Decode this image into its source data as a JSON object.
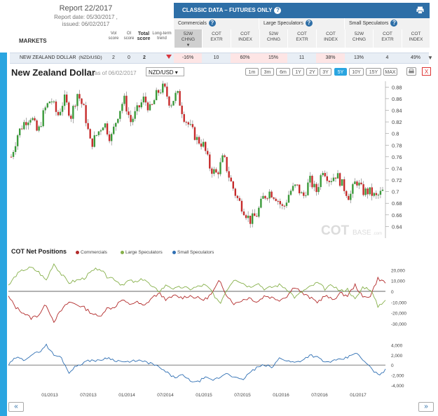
{
  "report": {
    "title": "Report 22/2017",
    "report_date": "Report date: 05/30/2017 ,",
    "issued": "issued: 06/02/2017"
  },
  "table_head": {
    "markets": "MARKETS",
    "vol_score": [
      "Vol",
      "score"
    ],
    "oi_score": [
      "OI",
      "score"
    ],
    "total_score": [
      "Total",
      "score"
    ],
    "long_term_trend": [
      "Long-term",
      "trend"
    ]
  },
  "classic": {
    "title": "CLASSIC DATA – FUTURES ONLY",
    "help": "?"
  },
  "groups": [
    "Commercials",
    "Large Speculators",
    "Small Speculators"
  ],
  "subheaders": [
    [
      "52W",
      "CHNG"
    ],
    [
      "COT",
      "EXTR"
    ],
    [
      "COT",
      "INDEX"
    ],
    [
      "52W",
      "CHNG"
    ],
    [
      "COT",
      "EXTR"
    ],
    [
      "COT",
      "INDEX"
    ],
    [
      "52W",
      "CHNG"
    ],
    [
      "COT",
      "EXTR"
    ],
    [
      "COT",
      "INDEX"
    ]
  ],
  "row": {
    "market": "NEW ZEALAND DOLLAR",
    "code": "(NZD/USD)",
    "vol": "2",
    "oi": "0",
    "total": "2",
    "values": [
      "-16%",
      "10",
      "60%",
      "15%",
      "11",
      "38%",
      "13%",
      "4",
      "49%"
    ]
  },
  "chart": {
    "title": "New Zealand Dollar",
    "as_of": "as of 06/02/2017",
    "pair": "NZD/USD ▾",
    "ranges": [
      "1m",
      "3m",
      "6m",
      "1Y",
      "2Y",
      "3Y",
      "5Y",
      "10Y",
      "15Y",
      "MAX"
    ],
    "active_range": "5Y",
    "close": "X",
    "watermark_cot": "COT",
    "watermark_base": "BASE",
    "watermark_suffix": ".com"
  },
  "cot": {
    "title": "COT Net Positions",
    "legend": [
      "Commercials",
      "Large Speculators",
      "Small Speculators"
    ],
    "colors": {
      "commercials": "#b22a2a",
      "large": "#86b04a",
      "small": "#2f6fb3"
    }
  },
  "nav": {
    "prev": "«",
    "next": "»"
  },
  "chart_data": [
    {
      "type": "candlestick",
      "title": "New Zealand Dollar",
      "ylim": [
        0.62,
        0.89
      ],
      "yticks": [
        "0.88",
        "0.86",
        "0.84",
        "0.82",
        "0.8",
        "0.78",
        "0.76",
        "0.74",
        "0.72",
        "0.7",
        "0.68",
        "0.66",
        "0.64"
      ],
      "series_close": [
        0.76,
        0.8,
        0.82,
        0.83,
        0.8,
        0.84,
        0.86,
        0.83,
        0.86,
        0.83,
        0.87,
        0.84,
        0.78,
        0.8,
        0.82,
        0.79,
        0.83,
        0.86,
        0.82,
        0.84,
        0.86,
        0.84,
        0.87,
        0.88,
        0.85,
        0.87,
        0.83,
        0.81,
        0.79,
        0.78,
        0.74,
        0.73,
        0.76,
        0.72,
        0.69,
        0.67,
        0.65,
        0.66,
        0.69,
        0.7,
        0.69,
        0.67,
        0.7,
        0.71,
        0.69,
        0.72,
        0.7,
        0.74,
        0.72,
        0.73,
        0.71,
        0.69,
        0.72,
        0.7,
        0.7,
        0.69,
        0.7
      ]
    },
    {
      "type": "line",
      "title": "COT Net Positions",
      "ylim": [
        -30000,
        30000
      ],
      "yticks": [
        "20,000",
        "10,000",
        "0",
        "-10,000",
        "-20,000",
        "-30,000"
      ],
      "series": [
        {
          "name": "Commercials",
          "values": [
            -5000,
            -15000,
            -20000,
            -25000,
            -22000,
            -12000,
            -28000,
            -18000,
            -10000,
            -12000,
            -15000,
            -20000,
            -24000,
            -16000,
            -15000,
            -8000,
            -12000,
            -10000,
            -14000,
            -6000,
            -2000,
            -8000,
            -4000,
            -6000,
            -4000,
            -6000,
            -8000,
            -2000,
            10000,
            -4000,
            -12000,
            -8000,
            -6000,
            -10000,
            -4000,
            -6000,
            -8000,
            -4000,
            5000,
            -2000,
            -6000,
            -10000,
            -4000,
            -8000,
            -2000,
            -4000,
            6000,
            -6000,
            -4000,
            12000,
            8000
          ]
        },
        {
          "name": "Large Speculators",
          "values": [
            5000,
            15000,
            20000,
            22000,
            18000,
            10000,
            26000,
            16000,
            8000,
            10000,
            12000,
            18000,
            22000,
            14000,
            12000,
            6000,
            10000,
            8000,
            12000,
            4000,
            0,
            6000,
            2000,
            4000,
            2000,
            4000,
            6000,
            0,
            -12000,
            2000,
            12000,
            8000,
            4000,
            8000,
            2000,
            4000,
            6000,
            2000,
            -6000,
            0,
            4000,
            8000,
            2000,
            6000,
            0,
            2000,
            -8000,
            4000,
            2000,
            -14000,
            -8000
          ]
        }
      ]
    },
    {
      "type": "line",
      "ylim": [
        -4000,
        6000
      ],
      "yticks": [
        "4,000",
        "2,000",
        "0",
        "-2,000",
        "-4,000"
      ],
      "x_ticks": [
        "01/2013",
        "07/2013",
        "01/2014",
        "07/2014",
        "01/2015",
        "07/2015",
        "01/2016",
        "07/2016",
        "01/2017"
      ],
      "series": [
        {
          "name": "Small Speculators",
          "values": [
            0,
            1500,
            1000,
            2000,
            2500,
            4000,
            2000,
            1500,
            -1500,
            -200,
            500,
            1000,
            800,
            1500,
            1000,
            700,
            500,
            1000,
            600,
            300,
            -500,
            -1500,
            -2500,
            -2000,
            -3000,
            -3500,
            -2500,
            -3000,
            -2500,
            -1500,
            -2500,
            -3000,
            -1500,
            -500,
            0,
            -500,
            1500,
            800,
            500,
            1000,
            2000,
            1500,
            500,
            800,
            1000,
            1500,
            2500,
            1000,
            -500,
            -2000,
            -1000
          ]
        }
      ]
    }
  ]
}
